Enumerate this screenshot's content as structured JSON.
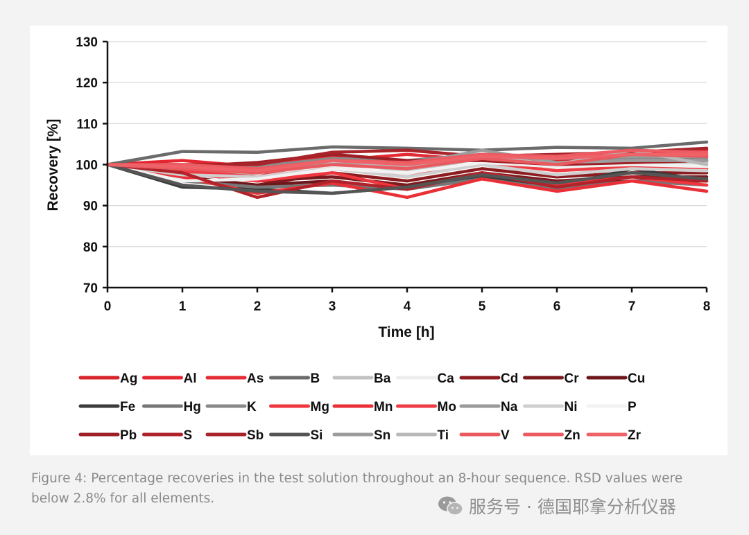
{
  "chart_data": {
    "type": "line",
    "xlabel": "Time [h]",
    "ylabel": "Recovery [%]",
    "xlim": [
      0,
      8
    ],
    "ylim": [
      70,
      130
    ],
    "x": [
      0,
      1,
      2,
      3,
      4,
      5,
      6,
      7,
      8
    ],
    "xticks": [
      "0",
      "1",
      "2",
      "3",
      "4",
      "5",
      "6",
      "7",
      "8"
    ],
    "yticks": [
      "70",
      "80",
      "90",
      "100",
      "110",
      "120",
      "130"
    ],
    "grid": "horizontal",
    "legend_position": "bottom",
    "series": [
      {
        "name": "Ag",
        "color": "#d8232a",
        "values": [
          100,
          99.5,
          98.5,
          100.5,
          100.5,
          101.5,
          101,
          101.5,
          102
        ]
      },
      {
        "name": "Al",
        "color": "#e3262f",
        "values": [
          100,
          101,
          99.5,
          102,
          100.5,
          102,
          101.5,
          102.5,
          103.5
        ]
      },
      {
        "name": "As",
        "color": "#e52b33",
        "values": [
          100,
          100,
          97,
          101,
          102.5,
          101,
          100,
          101.5,
          102.5
        ]
      },
      {
        "name": "B",
        "color": "#6b6b6b",
        "values": [
          100,
          103.2,
          103,
          104.3,
          104,
          103.5,
          104.2,
          104,
          105.5
        ]
      },
      {
        "name": "Ba",
        "color": "#c2c2c2",
        "values": [
          100,
          97.5,
          98,
          100.5,
          98.5,
          101.5,
          100,
          100.5,
          100.5
        ]
      },
      {
        "name": "Ca",
        "color": "#ededed",
        "values": [
          100,
          96.5,
          97,
          99.5,
          97.5,
          100,
          99,
          99.5,
          100
        ]
      },
      {
        "name": "Cd",
        "color": "#8b1c20",
        "values": [
          100,
          97,
          95,
          98,
          96,
          99,
          97,
          98,
          98
        ]
      },
      {
        "name": "Cr",
        "color": "#7a1a1e",
        "values": [
          100,
          98,
          96,
          97,
          95,
          98,
          96,
          97,
          97
        ]
      },
      {
        "name": "Cu",
        "color": "#6e171b",
        "values": [
          100,
          97,
          95,
          96,
          94,
          97,
          95,
          96,
          96
        ]
      },
      {
        "name": "Fe",
        "color": "#3c3c3c",
        "values": [
          100,
          94.5,
          94,
          93,
          94.5,
          97,
          94.5,
          99,
          96
        ]
      },
      {
        "name": "Hg",
        "color": "#777777",
        "values": [
          100,
          96,
          94.5,
          95,
          94,
          96.5,
          94,
          96,
          95
        ]
      },
      {
        "name": "K",
        "color": "#8a8a8a",
        "values": [
          100,
          99,
          99.5,
          101.5,
          101,
          102.5,
          102,
          101.5,
          101.5
        ]
      },
      {
        "name": "Mg",
        "color": "#f0363e",
        "values": [
          100,
          98,
          96,
          98,
          94,
          98,
          95,
          97,
          95
        ]
      },
      {
        "name": "Mn",
        "color": "#ea2f37",
        "values": [
          100,
          97,
          93,
          95.5,
          92,
          96.5,
          93.5,
          96,
          93.5
        ]
      },
      {
        "name": "Mo",
        "color": "#ee3d44",
        "values": [
          100,
          98.5,
          97,
          99,
          97,
          100.5,
          98.5,
          99.5,
          99
        ]
      },
      {
        "name": "Na",
        "color": "#9a9a9a",
        "values": [
          100,
          99,
          99,
          100,
          100.5,
          101.5,
          101.5,
          102,
          102
        ]
      },
      {
        "name": "Ni",
        "color": "#cfcfcf",
        "values": [
          100,
          97.5,
          97,
          99,
          97,
          100,
          97.5,
          99,
          98.5
        ]
      },
      {
        "name": "P",
        "color": "#f2f2f2",
        "values": [
          100,
          96,
          96.5,
          99,
          98,
          100.5,
          99.5,
          100,
          99.5
        ]
      },
      {
        "name": "Pb",
        "color": "#9e2026",
        "values": [
          100,
          99.5,
          100.5,
          102.5,
          101,
          101,
          100,
          100.5,
          101
        ]
      },
      {
        "name": "S",
        "color": "#b0232a",
        "values": [
          100,
          98,
          92,
          96,
          94,
          98,
          94.5,
          97,
          96
        ]
      },
      {
        "name": "Sb",
        "color": "#a8242a",
        "values": [
          100,
          100,
          100,
          103,
          103.5,
          102,
          102.5,
          103,
          104
        ]
      },
      {
        "name": "Si",
        "color": "#555555",
        "values": [
          100,
          95,
          93.5,
          93,
          94.5,
          97.5,
          95.5,
          98,
          96.5
        ]
      },
      {
        "name": "Sn",
        "color": "#9c9c9c",
        "values": [
          100,
          99,
          99,
          101,
          100,
          103.5,
          100.5,
          101,
          101
        ]
      },
      {
        "name": "Ti",
        "color": "#b8b8b8",
        "values": [
          100,
          99.5,
          98,
          100,
          99.5,
          102,
          100,
          103.5,
          100
        ]
      },
      {
        "name": "V",
        "color": "#e85a60",
        "values": [
          100,
          99,
          98,
          100,
          99,
          101.5,
          100,
          102.5,
          102
        ]
      },
      {
        "name": "Zn",
        "color": "#ec5b62",
        "values": [
          100,
          100,
          99,
          101,
          100.5,
          102.5,
          102,
          103.5,
          103
        ]
      },
      {
        "name": "Zr",
        "color": "#ee6268",
        "values": [
          100,
          99.5,
          98.5,
          101,
          100,
          102,
          101.5,
          102.5,
          102.5
        ]
      }
    ]
  },
  "caption": "Figure 4: Percentage recoveries in the test solution throughout an 8-hour sequence. RSD values were below 2.8% for all elements.",
  "watermark": "服务号 · 德国耶拿分析仪器"
}
